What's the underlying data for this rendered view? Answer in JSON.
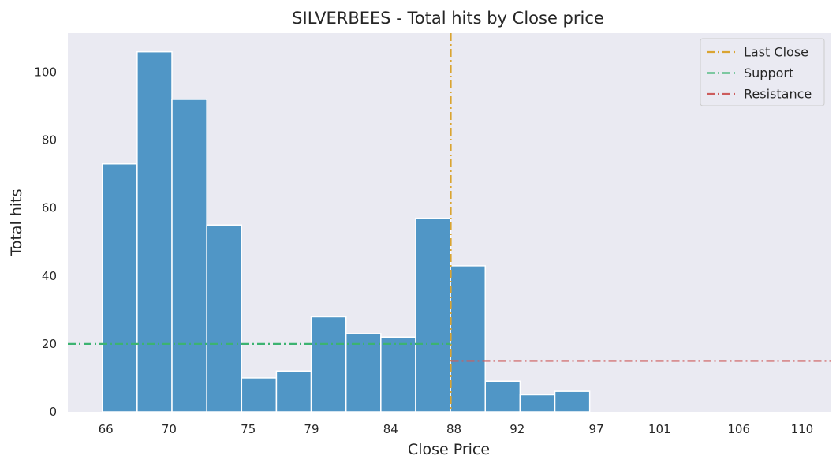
{
  "chart_data": {
    "type": "histogram",
    "title": "SILVERBEES - Total hits by Close price",
    "xlabel": "Close Price",
    "ylabel": "Total hits",
    "xlim": [
      63.6,
      111.8
    ],
    "ylim": [
      0,
      111.5
    ],
    "x_ticks": [
      {
        "value": 66,
        "label": "66"
      },
      {
        "value": 70,
        "label": "70"
      },
      {
        "value": 75,
        "label": "75"
      },
      {
        "value": 79,
        "label": "79"
      },
      {
        "value": 84,
        "label": "84"
      },
      {
        "value": 88,
        "label": "88"
      },
      {
        "value": 92,
        "label": "92"
      },
      {
        "value": 97,
        "label": "97"
      },
      {
        "value": 101,
        "label": "101"
      },
      {
        "value": 106,
        "label": "106"
      },
      {
        "value": 110,
        "label": "110"
      }
    ],
    "y_ticks": [
      0,
      20,
      40,
      60,
      80,
      100
    ],
    "bins": [
      {
        "x0": 65.78,
        "x1": 67.98,
        "count": 73
      },
      {
        "x0": 67.98,
        "x1": 70.18,
        "count": 106
      },
      {
        "x0": 70.18,
        "x1": 72.38,
        "count": 92
      },
      {
        "x0": 72.38,
        "x1": 74.58,
        "count": 55
      },
      {
        "x0": 74.58,
        "x1": 76.78,
        "count": 10
      },
      {
        "x0": 76.78,
        "x1": 78.98,
        "count": 12
      },
      {
        "x0": 78.98,
        "x1": 81.18,
        "count": 28
      },
      {
        "x0": 81.18,
        "x1": 83.38,
        "count": 23
      },
      {
        "x0": 83.38,
        "x1": 85.58,
        "count": 22
      },
      {
        "x0": 85.58,
        "x1": 87.78,
        "count": 57
      },
      {
        "x0": 87.78,
        "x1": 89.98,
        "count": 43
      },
      {
        "x0": 89.98,
        "x1": 92.18,
        "count": 9
      },
      {
        "x0": 92.18,
        "x1": 94.38,
        "count": 5
      },
      {
        "x0": 94.38,
        "x1": 96.58,
        "count": 6
      }
    ],
    "bar_color": "#5096c6",
    "lines": [
      {
        "name": "Last Close",
        "orientation": "vertical",
        "x": 87.8,
        "color": "#daa431"
      },
      {
        "name": "Support",
        "orientation": "horizontal",
        "y": 20,
        "x_from": 63.6,
        "x_to": 87.8,
        "color": "#3cb371"
      },
      {
        "name": "Resistance",
        "orientation": "horizontal",
        "y": 15,
        "x_from": 87.8,
        "x_to": 111.8,
        "color": "#cd5c5c"
      }
    ],
    "legend": {
      "position": "top-right"
    },
    "grid": false,
    "background": "#eaeaf2"
  }
}
